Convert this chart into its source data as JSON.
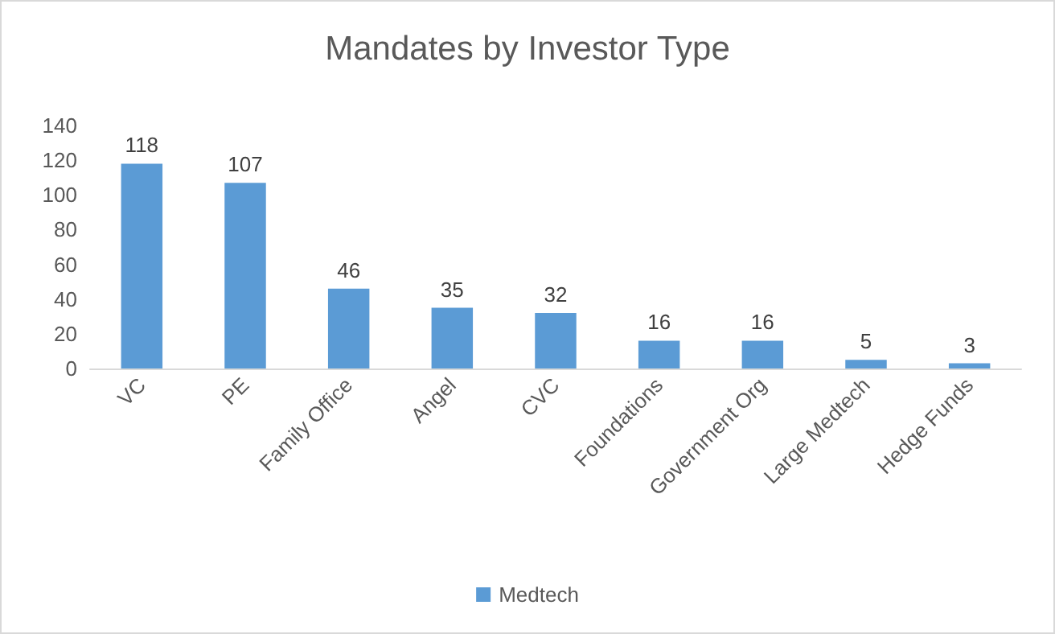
{
  "chart_data": {
    "type": "bar",
    "title": "Mandates by Investor Type",
    "categories": [
      "VC",
      "PE",
      "Family Office",
      "Angel",
      "CVC",
      "Foundations",
      "Government Org",
      "Large Medtech",
      "Hedge Funds"
    ],
    "series": [
      {
        "name": "Medtech",
        "color": "#5b9bd5",
        "values": [
          118,
          107,
          46,
          35,
          32,
          16,
          16,
          5,
          3
        ]
      }
    ],
    "ylim": [
      0,
      140
    ],
    "yticks": [
      0,
      20,
      40,
      60,
      80,
      100,
      120,
      140
    ],
    "grid": false,
    "legend": "bottom",
    "data_labels": true
  }
}
